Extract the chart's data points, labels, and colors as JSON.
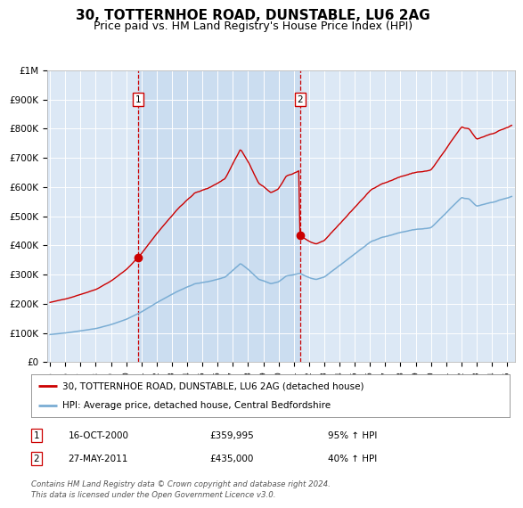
{
  "title": "30, TOTTERNHOE ROAD, DUNSTABLE, LU6 2AG",
  "subtitle": "Price paid vs. HM Land Registry's House Price Index (HPI)",
  "title_fontsize": 11,
  "subtitle_fontsize": 9,
  "background_color": "#ffffff",
  "plot_bg_color": "#dce8f5",
  "highlight_color": "#c8dcf0",
  "grid_color": "#ffffff",
  "ylim": [
    0,
    1000000
  ],
  "yticks": [
    0,
    100000,
    200000,
    300000,
    400000,
    500000,
    600000,
    700000,
    800000,
    900000,
    1000000
  ],
  "ytick_labels": [
    "£0",
    "£100K",
    "£200K",
    "£300K",
    "£400K",
    "£500K",
    "£600K",
    "£700K",
    "£800K",
    "£900K",
    "£1M"
  ],
  "red_line_color": "#cc0000",
  "blue_line_color": "#7aadd4",
  "marker1_year": 2000.79,
  "marker1_price": 359995,
  "marker2_year": 2011.4,
  "marker2_price": 435000,
  "legend_label_red": "30, TOTTERNHOE ROAD, DUNSTABLE, LU6 2AG (detached house)",
  "legend_label_blue": "HPI: Average price, detached house, Central Bedfordshire",
  "annotation1_date": "16-OCT-2000",
  "annotation1_price": "£359,995",
  "annotation1_hpi": "95% ↑ HPI",
  "annotation2_date": "27-MAY-2011",
  "annotation2_price": "£435,000",
  "annotation2_hpi": "40% ↑ HPI",
  "footer": "Contains HM Land Registry data © Crown copyright and database right 2024.\nThis data is licensed under the Open Government Licence v3.0.",
  "xmin": 1994.8,
  "xmax": 2025.5
}
